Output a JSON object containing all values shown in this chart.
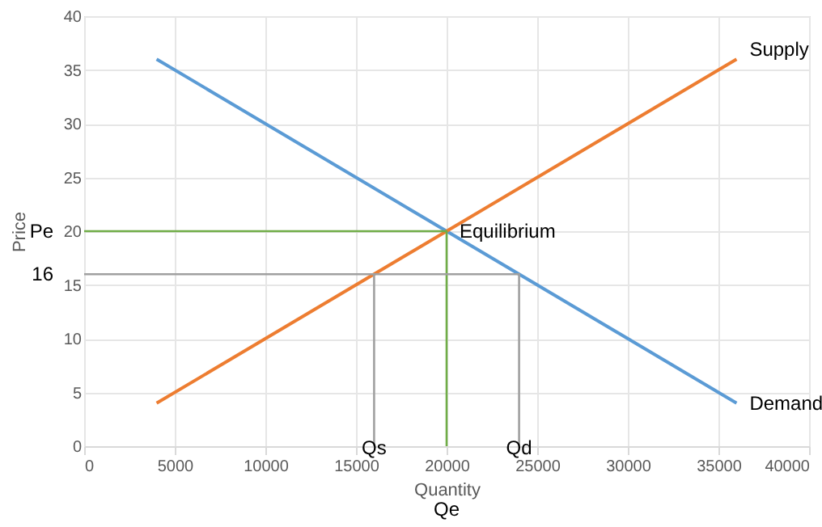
{
  "chart_data": {
    "type": "line",
    "xlabel": "Quantity",
    "ylabel": "Price",
    "xlim": [
      0,
      40000
    ],
    "ylim": [
      0,
      40
    ],
    "xticks": [
      0,
      5000,
      10000,
      15000,
      20000,
      25000,
      30000,
      35000,
      40000
    ],
    "yticks": [
      0,
      5,
      10,
      15,
      20,
      25,
      30,
      35,
      40
    ],
    "grid": true,
    "marker": "none",
    "line_style": "solid",
    "series": [
      {
        "name": "Demand",
        "color": "#5b9bd5",
        "x": [
          4000,
          36000
        ],
        "values": [
          36,
          4
        ]
      },
      {
        "name": "Supply",
        "color": "#ed7d31",
        "x": [
          4000,
          36000
        ],
        "values": [
          4,
          36
        ]
      },
      {
        "color": "#70ad47",
        "x": [
          0,
          20000,
          20000
        ],
        "values": [
          20,
          20,
          0
        ]
      },
      {
        "color": "#a0a0a0",
        "x": [
          0,
          24000,
          24000
        ],
        "values": [
          16,
          16,
          0
        ]
      },
      {
        "color": "#a0a0a0",
        "x": [
          16000,
          16000
        ],
        "values": [
          16,
          0
        ]
      }
    ],
    "annotations": [
      {
        "text": "Pe",
        "x": 0,
        "y": 20
      },
      {
        "text": "16",
        "x": 0,
        "y": 16
      },
      {
        "text": "Equilibrium",
        "x": 20000,
        "y": 20
      },
      {
        "text": "Qs",
        "x": 16000,
        "y": 0
      },
      {
        "text": "Qd",
        "x": 24000,
        "y": 0
      },
      "Qe"
    ]
  }
}
